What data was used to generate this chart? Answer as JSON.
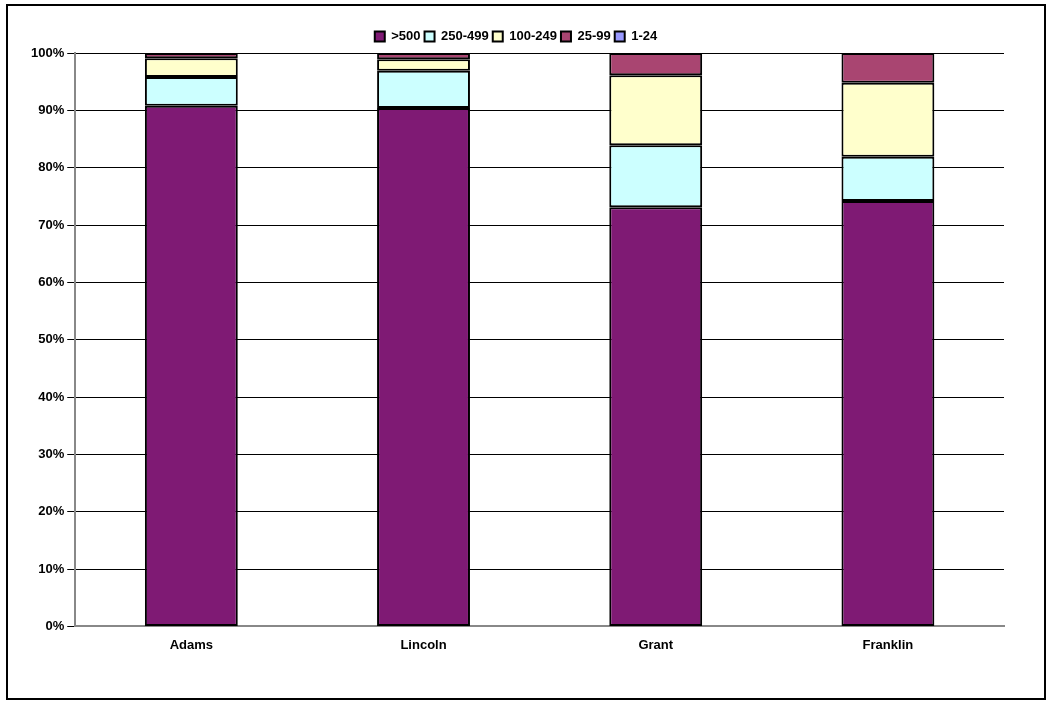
{
  "chart_data": {
    "type": "bar",
    "stacked": true,
    "categories": [
      "Adams",
      "Lincoln",
      "Grant",
      "Franklin"
    ],
    "series": [
      {
        "name": ">500",
        "color": "#7f1a74",
        "values": [
          90.8,
          90.4,
          73.1,
          74.2
        ]
      },
      {
        "name": "250-499",
        "color": "#ccffff",
        "values": [
          5,
          6.5,
          10.8,
          7.7
        ]
      },
      {
        "name": "100-249",
        "color": "#ffffcc",
        "values": [
          3.3,
          2,
          12.2,
          12.9
        ]
      },
      {
        "name": "25-99",
        "color": "#a94571",
        "values": [
          0.9,
          1.1,
          3.9,
          5.2
        ]
      },
      {
        "name": "1-24",
        "color": "#9999ff",
        "values": [
          0,
          0,
          0,
          0
        ]
      }
    ],
    "ylim": [
      0,
      100
    ],
    "yticks": [
      {
        "value": 0,
        "label": "0%"
      },
      {
        "value": 10,
        "label": "10%"
      },
      {
        "value": 20,
        "label": "20%"
      },
      {
        "value": 30,
        "label": "30%"
      },
      {
        "value": 40,
        "label": "40%"
      },
      {
        "value": 50,
        "label": "50%"
      },
      {
        "value": 60,
        "label": "60%"
      },
      {
        "value": 70,
        "label": "70%"
      },
      {
        "value": 80,
        "label": "80%"
      },
      {
        "value": 90,
        "label": "90%"
      },
      {
        "value": 100,
        "label": "100%"
      }
    ],
    "grid": "y",
    "legend": "top"
  }
}
